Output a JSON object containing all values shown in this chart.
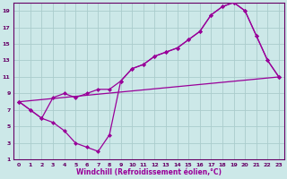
{
  "xlabel": "Windchill (Refroidissement éolien,°C)",
  "bg_color": "#cce8e8",
  "line_color": "#990099",
  "marker_color": "#990099",
  "xlim": [
    -0.5,
    23.5
  ],
  "ylim": [
    1,
    20
  ],
  "xticks": [
    0,
    1,
    2,
    3,
    4,
    5,
    6,
    7,
    8,
    9,
    10,
    11,
    12,
    13,
    14,
    15,
    16,
    17,
    18,
    19,
    20,
    21,
    22,
    23
  ],
  "yticks": [
    1,
    3,
    5,
    7,
    9,
    11,
    13,
    15,
    17,
    19
  ],
  "grid_color": "#aacccc",
  "curve_upper": [
    [
      0,
      8.0
    ],
    [
      1,
      7.0
    ],
    [
      2,
      6.0
    ],
    [
      3,
      8.5
    ],
    [
      4,
      9.0
    ],
    [
      5,
      8.5
    ],
    [
      6,
      9.0
    ],
    [
      7,
      9.5
    ],
    [
      8,
      9.5
    ],
    [
      9,
      10.5
    ],
    [
      10,
      12.0
    ],
    [
      11,
      12.5
    ],
    [
      12,
      13.5
    ],
    [
      13,
      14.0
    ],
    [
      14,
      14.5
    ],
    [
      15,
      15.5
    ],
    [
      16,
      16.5
    ],
    [
      17,
      18.5
    ],
    [
      18,
      19.5
    ],
    [
      19,
      20.0
    ],
    [
      20,
      19.0
    ],
    [
      21,
      16.0
    ],
    [
      22,
      13.0
    ],
    [
      23,
      11.0
    ]
  ],
  "curve_lower": [
    [
      0,
      8.0
    ],
    [
      1,
      7.0
    ],
    [
      2,
      6.0
    ],
    [
      3,
      5.5
    ],
    [
      4,
      4.5
    ],
    [
      5,
      3.0
    ],
    [
      6,
      2.5
    ],
    [
      7,
      2.0
    ],
    [
      8,
      4.0
    ],
    [
      9,
      10.5
    ],
    [
      10,
      12.0
    ],
    [
      11,
      12.5
    ],
    [
      12,
      13.5
    ],
    [
      13,
      14.0
    ],
    [
      14,
      14.5
    ],
    [
      15,
      15.5
    ],
    [
      16,
      16.5
    ],
    [
      17,
      18.5
    ],
    [
      18,
      19.5
    ],
    [
      19,
      20.0
    ],
    [
      20,
      19.0
    ],
    [
      21,
      16.0
    ],
    [
      22,
      13.0
    ],
    [
      23,
      11.0
    ]
  ],
  "curve_straight": [
    [
      0,
      8.0
    ],
    [
      23,
      11.0
    ]
  ]
}
